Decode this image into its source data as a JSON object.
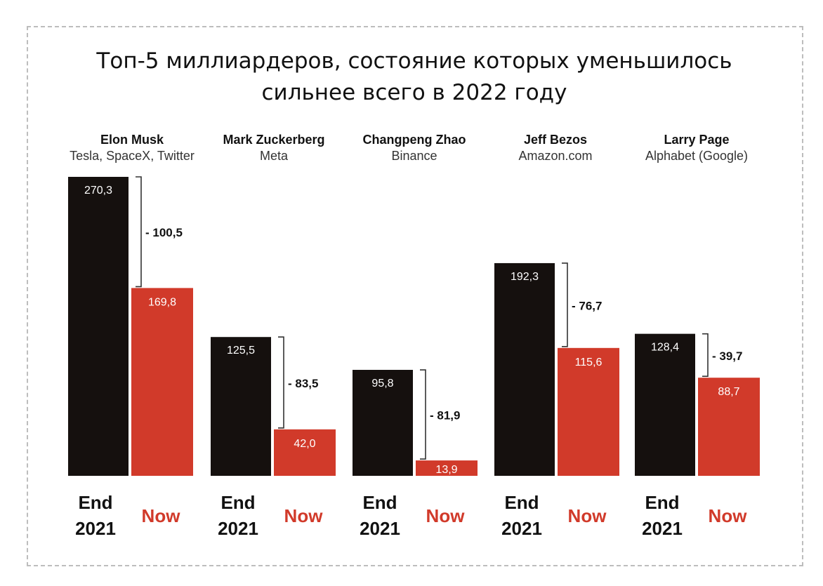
{
  "title_line1": "Топ-5 миллиардеров, состояние которых уменьшилось",
  "title_line2": "сильнее всего в 2022 году",
  "colors": {
    "end_2021": "#15100e",
    "now": "#d13a2a",
    "bracket": "#333333"
  },
  "chart_data": {
    "type": "bar",
    "title": "Топ-5 миллиардеров, состояние которых уменьшилось сильнее всего в 2022 году",
    "categories": [
      "Elon Musk",
      "Mark Zuckerberg",
      "Changpeng Zhao",
      "Jeff Bezos",
      "Larry Page"
    ],
    "companies": [
      "Tesla, SpaceX, Twitter",
      "Meta",
      "Binance",
      "Amazon.com",
      "Alphabet (Google)"
    ],
    "x_labels": {
      "end_line1": "End",
      "end_line2": "2021",
      "now": "Now"
    },
    "series": [
      {
        "name": "End 2021",
        "values": [
          270.3,
          125.5,
          95.8,
          192.3,
          128.4
        ],
        "labels": [
          "270,3",
          "125,5",
          "95,8",
          "192,3",
          "128,4"
        ]
      },
      {
        "name": "Now",
        "values": [
          169.8,
          42.0,
          13.9,
          115.6,
          88.7
        ],
        "labels": [
          "169,8",
          "42,0",
          "13,9",
          "115,6",
          "88,7"
        ]
      }
    ],
    "differences": [
      -100.5,
      -83.5,
      -81.9,
      -76.7,
      -39.7
    ],
    "difference_labels": [
      "- 100,5",
      "- 83,5",
      "- 81,9",
      "- 76,7",
      "- 39,7"
    ],
    "ylim": [
      0,
      270.3
    ],
    "grid": false,
    "legend": "none"
  }
}
